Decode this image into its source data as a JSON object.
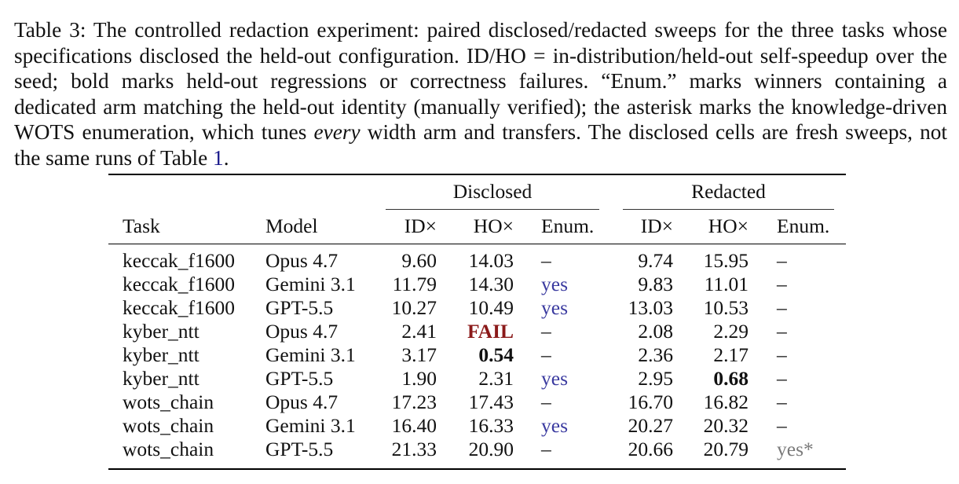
{
  "caption": {
    "text_before_ref": "Table 3: The controlled redaction experiment: paired disclosed/redacted sweeps for the three tasks whose specifications disclosed the held-out configuration. ID/HO = in-distribution/held-out self-speedup over the seed; bold marks held-out regressions or correctness failures. “Enum.” marks winners containing a dedicated arm matching the held-out identity (manually verified); the asterisk marks the knowledge-driven WOTS enumeration, which tunes ",
    "emphasis": "every",
    "text_middle": " width arm and transfers. The disclosed cells are fresh sweeps, not the same runs of Table ",
    "ref": "1",
    "text_end": "."
  },
  "table": {
    "group_headers": [
      "Disclosed",
      "Redacted"
    ],
    "columns": [
      "Task",
      "Model",
      "ID×",
      "HO×",
      "Enum.",
      "ID×",
      "HO×",
      "Enum."
    ],
    "rows": [
      {
        "task": "keccak_f1600",
        "model": "Opus 4.7",
        "d_id": "9.60",
        "d_ho": "14.03",
        "d_enum": "–",
        "r_id": "9.74",
        "r_ho": "15.95",
        "r_enum": "–",
        "d_ho_style": "normal",
        "r_ho_style": "normal",
        "d_enum_style": "dash",
        "r_enum_style": "dash"
      },
      {
        "task": "keccak_f1600",
        "model": "Gemini 3.1",
        "d_id": "11.79",
        "d_ho": "14.30",
        "d_enum": "yes",
        "r_id": "9.83",
        "r_ho": "11.01",
        "r_enum": "–",
        "d_ho_style": "normal",
        "r_ho_style": "normal",
        "d_enum_style": "yes",
        "r_enum_style": "dash"
      },
      {
        "task": "keccak_f1600",
        "model": "GPT-5.5",
        "d_id": "10.27",
        "d_ho": "10.49",
        "d_enum": "yes",
        "r_id": "13.03",
        "r_ho": "10.53",
        "r_enum": "–",
        "d_ho_style": "normal",
        "r_ho_style": "normal",
        "d_enum_style": "yes",
        "r_enum_style": "dash"
      },
      {
        "task": "kyber_ntt",
        "model": "Opus 4.7",
        "d_id": "2.41",
        "d_ho": "FAIL",
        "d_enum": "–",
        "r_id": "2.08",
        "r_ho": "2.29",
        "r_enum": "–",
        "d_ho_style": "fail",
        "r_ho_style": "normal",
        "d_enum_style": "dash",
        "r_enum_style": "dash"
      },
      {
        "task": "kyber_ntt",
        "model": "Gemini 3.1",
        "d_id": "3.17",
        "d_ho": "0.54",
        "d_enum": "–",
        "r_id": "2.36",
        "r_ho": "2.17",
        "r_enum": "–",
        "d_ho_style": "bold",
        "r_ho_style": "normal",
        "d_enum_style": "dash",
        "r_enum_style": "dash"
      },
      {
        "task": "kyber_ntt",
        "model": "GPT-5.5",
        "d_id": "1.90",
        "d_ho": "2.31",
        "d_enum": "yes",
        "r_id": "2.95",
        "r_ho": "0.68",
        "r_enum": "–",
        "d_ho_style": "normal",
        "r_ho_style": "bold",
        "d_enum_style": "yes",
        "r_enum_style": "dash"
      },
      {
        "task": "wots_chain",
        "model": "Opus 4.7",
        "d_id": "17.23",
        "d_ho": "17.43",
        "d_enum": "–",
        "r_id": "16.70",
        "r_ho": "16.82",
        "r_enum": "–",
        "d_ho_style": "normal",
        "r_ho_style": "normal",
        "d_enum_style": "dash",
        "r_enum_style": "dash"
      },
      {
        "task": "wots_chain",
        "model": "Gemini 3.1",
        "d_id": "16.40",
        "d_ho": "16.33",
        "d_enum": "yes",
        "r_id": "20.27",
        "r_ho": "20.32",
        "r_enum": "–",
        "d_ho_style": "normal",
        "r_ho_style": "normal",
        "d_enum_style": "yes",
        "r_enum_style": "dash"
      },
      {
        "task": "wots_chain",
        "model": "GPT-5.5",
        "d_id": "21.33",
        "d_ho": "20.90",
        "d_enum": "–",
        "r_id": "20.66",
        "r_ho": "20.79",
        "r_enum": "yes*",
        "d_ho_style": "normal",
        "r_ho_style": "normal",
        "d_enum_style": "dash",
        "r_enum_style": "yes-star"
      }
    ]
  }
}
